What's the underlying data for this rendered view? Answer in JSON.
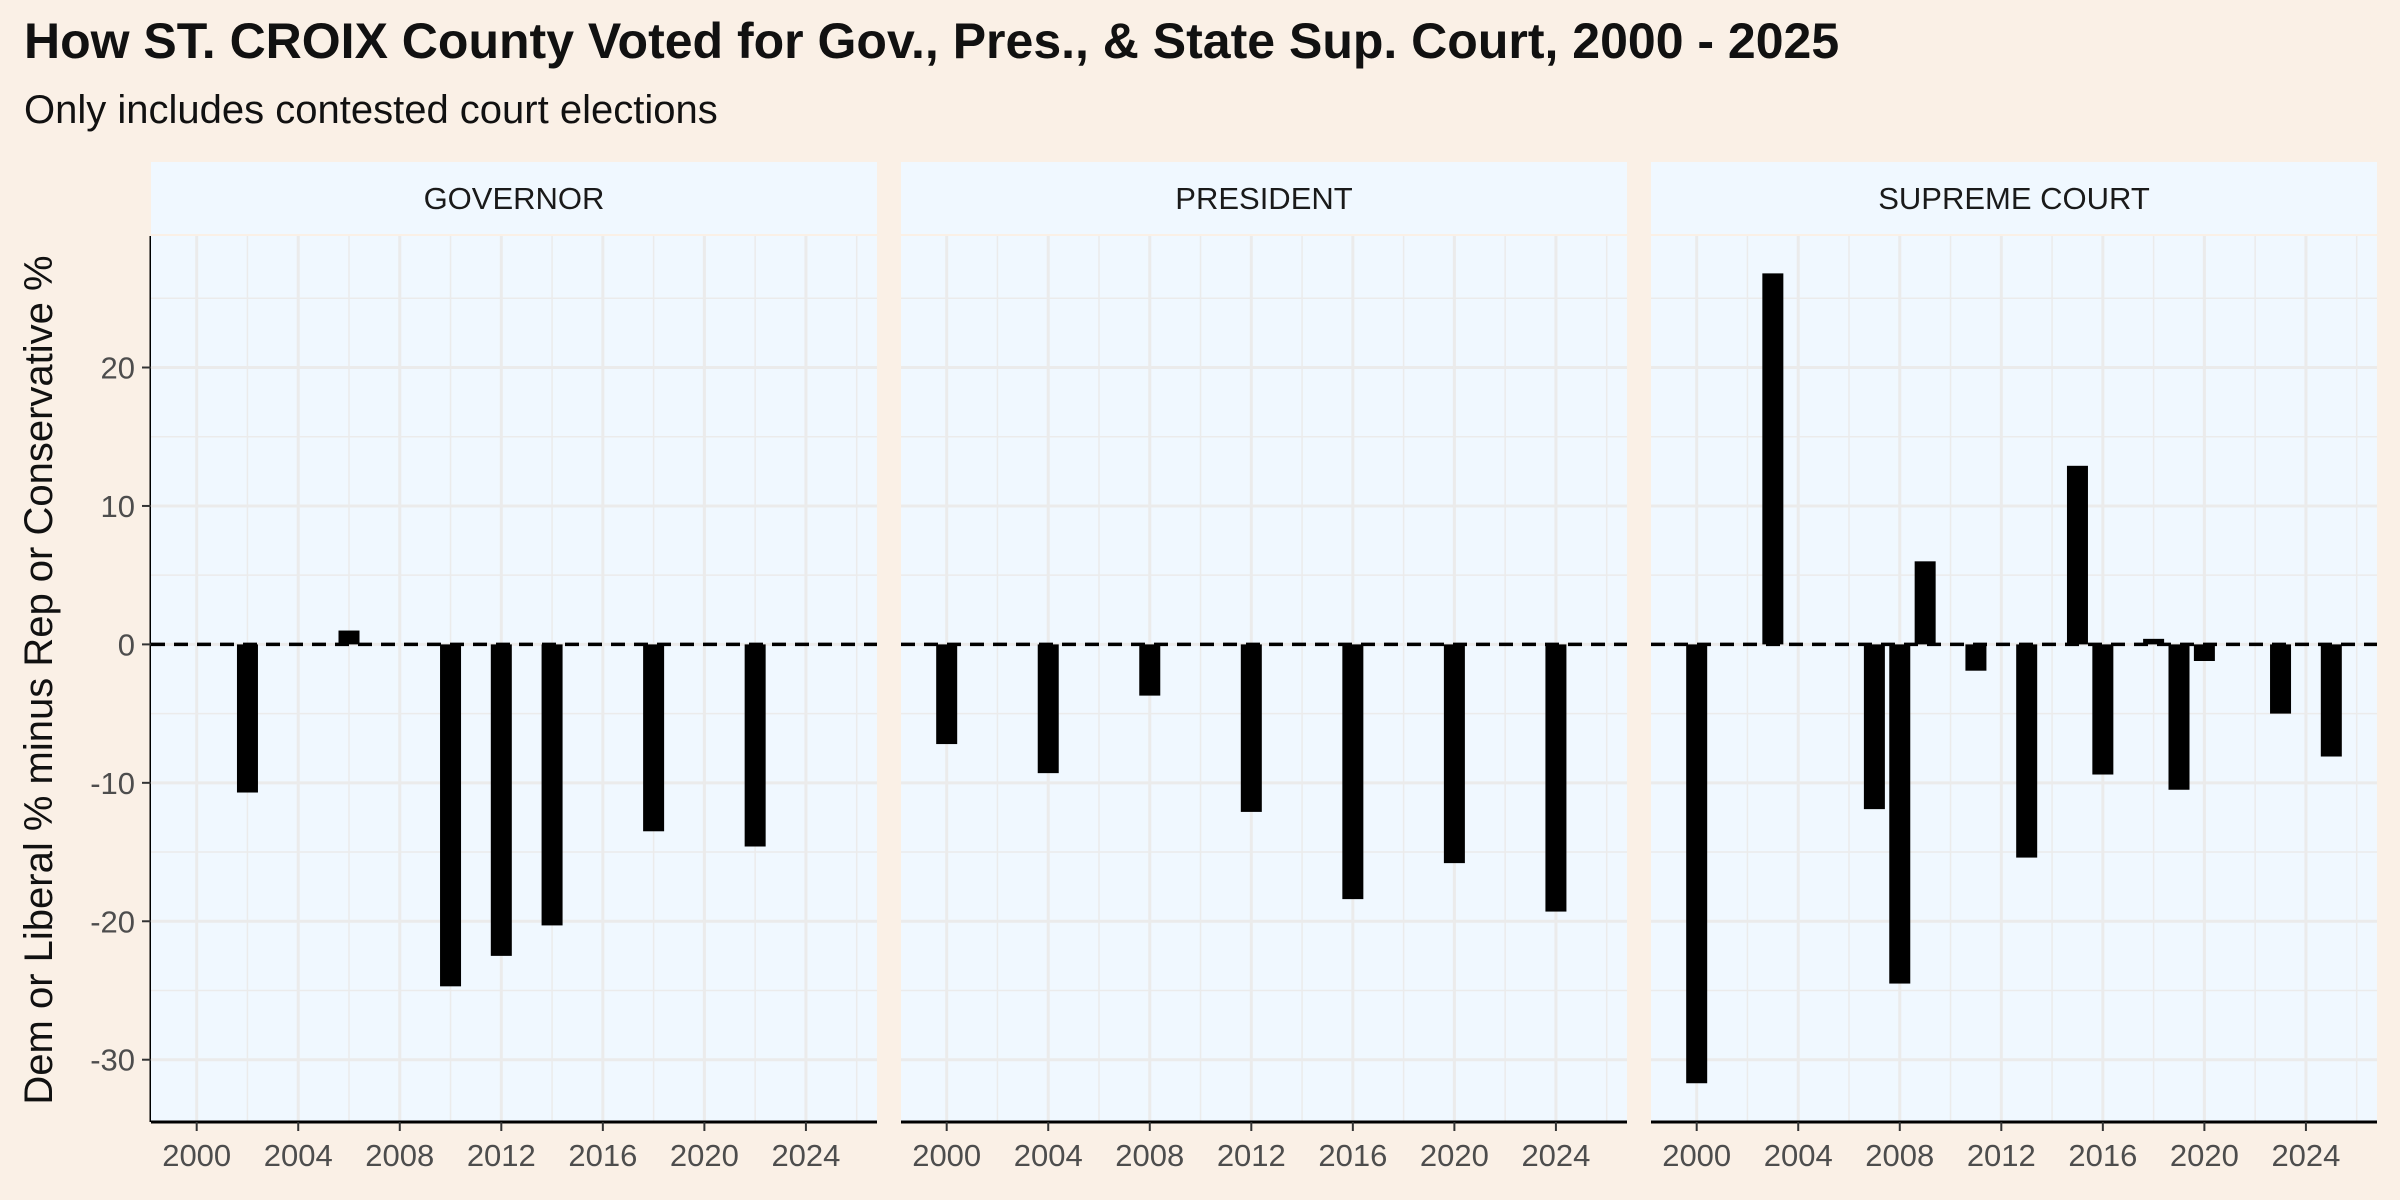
{
  "title": "How ST. CROIX County Voted for Gov., Pres., & State Sup. Court, 2000 - 2025",
  "subtitle": "Only includes contested court elections",
  "colors": {
    "page_background": "#FAF0E6",
    "panel_background": "#F0F8FF",
    "strip_background": "#F0F8FF",
    "bar": "#000000",
    "grid": "#EBEBEB",
    "zero_line": "#000000"
  },
  "chart_data": {
    "type": "bar",
    "ylabel": "Dem or Liberal % minus Rep or Conservative %",
    "xlabel": "",
    "ylim": [
      -34.5,
      29.5
    ],
    "xlim": [
      1998.2,
      2026.8
    ],
    "y_ticks": [
      -30,
      -20,
      -10,
      0,
      10,
      20
    ],
    "x_ticks": [
      2000,
      2004,
      2008,
      2012,
      2016,
      2020,
      2024
    ],
    "grid": true,
    "zero_line_style": "dashed",
    "facets": [
      {
        "label": "GOVERNOR",
        "points": [
          {
            "x": 2002,
            "y": -10.7
          },
          {
            "x": 2006,
            "y": 1.0
          },
          {
            "x": 2010,
            "y": -24.7
          },
          {
            "x": 2012,
            "y": -22.5
          },
          {
            "x": 2014,
            "y": -20.3
          },
          {
            "x": 2018,
            "y": -13.5
          },
          {
            "x": 2022,
            "y": -14.6
          }
        ]
      },
      {
        "label": "PRESIDENT",
        "points": [
          {
            "x": 2000,
            "y": -7.2
          },
          {
            "x": 2004,
            "y": -9.3
          },
          {
            "x": 2008,
            "y": -3.7
          },
          {
            "x": 2012,
            "y": -12.1
          },
          {
            "x": 2016,
            "y": -18.4
          },
          {
            "x": 2020,
            "y": -15.8
          },
          {
            "x": 2024,
            "y": -19.3
          }
        ]
      },
      {
        "label": "SUPREME COURT",
        "points": [
          {
            "x": 2000,
            "y": -31.7
          },
          {
            "x": 2003,
            "y": 26.8
          },
          {
            "x": 2007,
            "y": -11.9
          },
          {
            "x": 2008,
            "y": -24.5
          },
          {
            "x": 2009,
            "y": 6.0
          },
          {
            "x": 2011,
            "y": -1.9
          },
          {
            "x": 2013,
            "y": -15.4
          },
          {
            "x": 2015,
            "y": 12.9
          },
          {
            "x": 2016,
            "y": -9.4
          },
          {
            "x": 2018,
            "y": 0.4
          },
          {
            "x": 2019,
            "y": -10.5
          },
          {
            "x": 2020,
            "y": -1.2
          },
          {
            "x": 2023,
            "y": -5.0
          },
          {
            "x": 2025,
            "y": -8.1
          }
        ]
      }
    ]
  }
}
